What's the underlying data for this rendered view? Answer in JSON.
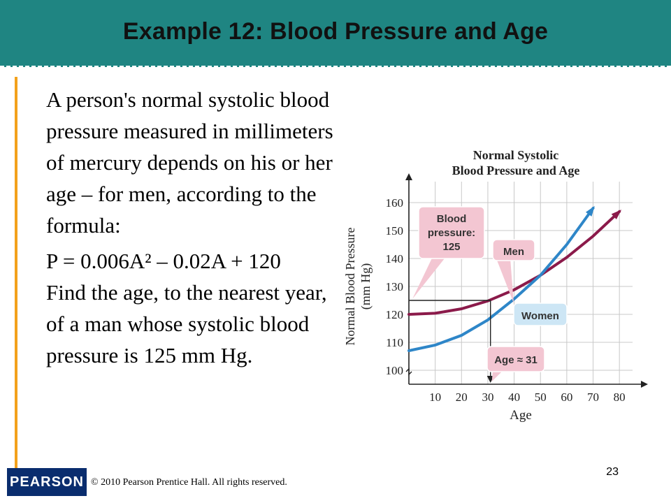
{
  "slide": {
    "title": "Example 12: Blood Pressure and Age",
    "paragraph1": "A person's normal systolic blood pressure measured in millimeters of mercury depends on his or her age – for men, according to the formula:",
    "formula": "P = 0.006A² – 0.02A + 120",
    "paragraph2": "Find the age, to the nearest year, of a man whose systolic blood pressure is 125 mm Hg.",
    "page_number": "23",
    "copyright": "© 2010 Pearson Prentice Hall. All rights reserved.",
    "logo_text": "PEARSON"
  },
  "colors": {
    "header": "#1f8582",
    "accent_rule": "#f3a11c",
    "men_curve": "#8b1a4a",
    "women_curve": "#2e86c8",
    "callout_pink": "#f3c6d2",
    "callout_blue": "#cde6f5"
  },
  "chart_data": {
    "type": "line",
    "title": "Normal Systolic\nBlood Pressure and Age",
    "xlabel": "Age",
    "ylabel": "Normal Blood Pressure\n(mm Hg)",
    "x_ticks": [
      10,
      20,
      30,
      40,
      50,
      60,
      70,
      80
    ],
    "y_ticks": [
      100,
      110,
      120,
      130,
      140,
      150,
      160
    ],
    "xlim": [
      0,
      85
    ],
    "ylim": [
      95,
      165
    ],
    "series": [
      {
        "name": "Men",
        "x": [
          0,
          10,
          20,
          30,
          40,
          50,
          60,
          70,
          80
        ],
        "y": [
          120,
          120.4,
          122,
          124.8,
          128.8,
          134,
          140.4,
          148,
          156.8
        ]
      },
      {
        "name": "Women",
        "x": [
          0,
          10,
          20,
          30,
          40,
          50,
          60,
          70
        ],
        "y": [
          107,
          109,
          112.5,
          118,
          125.5,
          134,
          145,
          158
        ]
      }
    ],
    "annotations": {
      "bp_callout_line1": "Blood",
      "bp_callout_line2": "pressure:",
      "bp_callout_line3": "125",
      "age_callout": "Age ≈ 31",
      "men_label": "Men",
      "women_label": "Women"
    },
    "marked_point": {
      "x": 31,
      "y": 125
    }
  }
}
